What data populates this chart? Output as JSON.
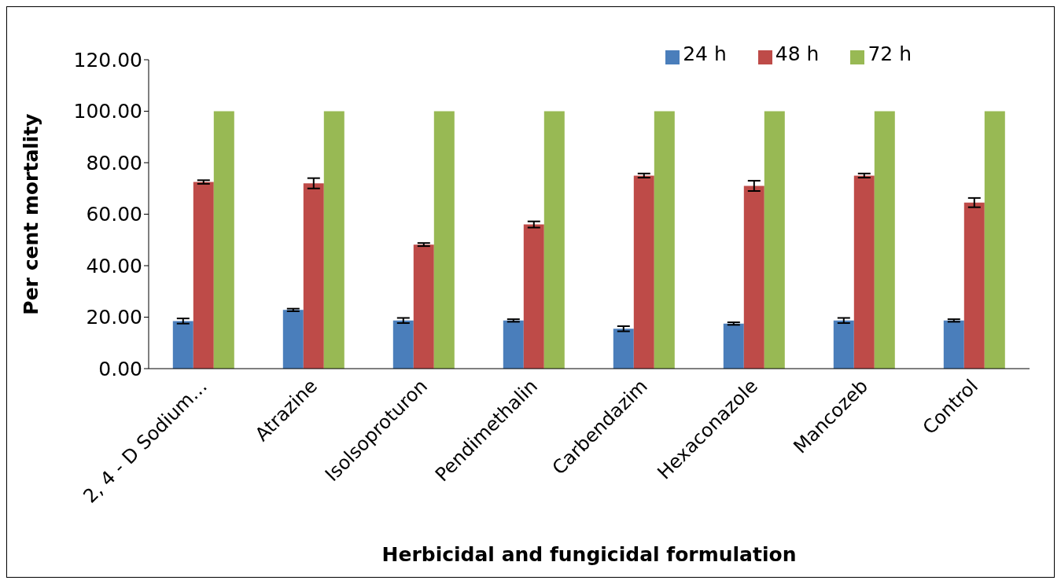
{
  "chart_data": {
    "type": "bar",
    "xlabel": "Herbicidal and fungicidal formulation",
    "ylabel": "Per cent mortality",
    "categories": [
      "2, 4 - D Sodium…",
      "Atrazine",
      "Isolsoproturon",
      "Pendimethalin",
      "Carbendazim",
      "Hexaconazole",
      "Mancozeb",
      "Control"
    ],
    "series": [
      {
        "name": "24 h",
        "color": "#4a7ebb",
        "values": [
          18.5,
          22.8,
          18.7,
          18.7,
          15.5,
          17.5,
          18.7,
          18.7
        ],
        "errors": [
          1,
          0.5,
          1,
          0.5,
          1,
          0.5,
          1,
          0.5
        ]
      },
      {
        "name": "48 h",
        "color": "#be4b48",
        "values": [
          72.5,
          72,
          48.2,
          56,
          75,
          71,
          75,
          64.5
        ],
        "errors": [
          0.7,
          2,
          0.6,
          1.2,
          0.8,
          2,
          0.8,
          1.8
        ]
      },
      {
        "name": "72 h",
        "color": "#98b954",
        "values": [
          100,
          100,
          100,
          100,
          100,
          100,
          100,
          100
        ],
        "errors": [
          0,
          0,
          0,
          0,
          0,
          0,
          0,
          0
        ]
      }
    ],
    "ylim": [
      0,
      120
    ],
    "yticks": [
      {
        "value": 0,
        "label": "0.00"
      },
      {
        "value": 20,
        "label": "20.00"
      },
      {
        "value": 40,
        "label": "40.00"
      },
      {
        "value": 60,
        "label": "60.00"
      },
      {
        "value": 80,
        "label": "80.00"
      },
      {
        "value": 100,
        "label": "100.00"
      },
      {
        "value": 120,
        "label": "120.00"
      }
    ],
    "grid": false,
    "legend": "top right"
  }
}
